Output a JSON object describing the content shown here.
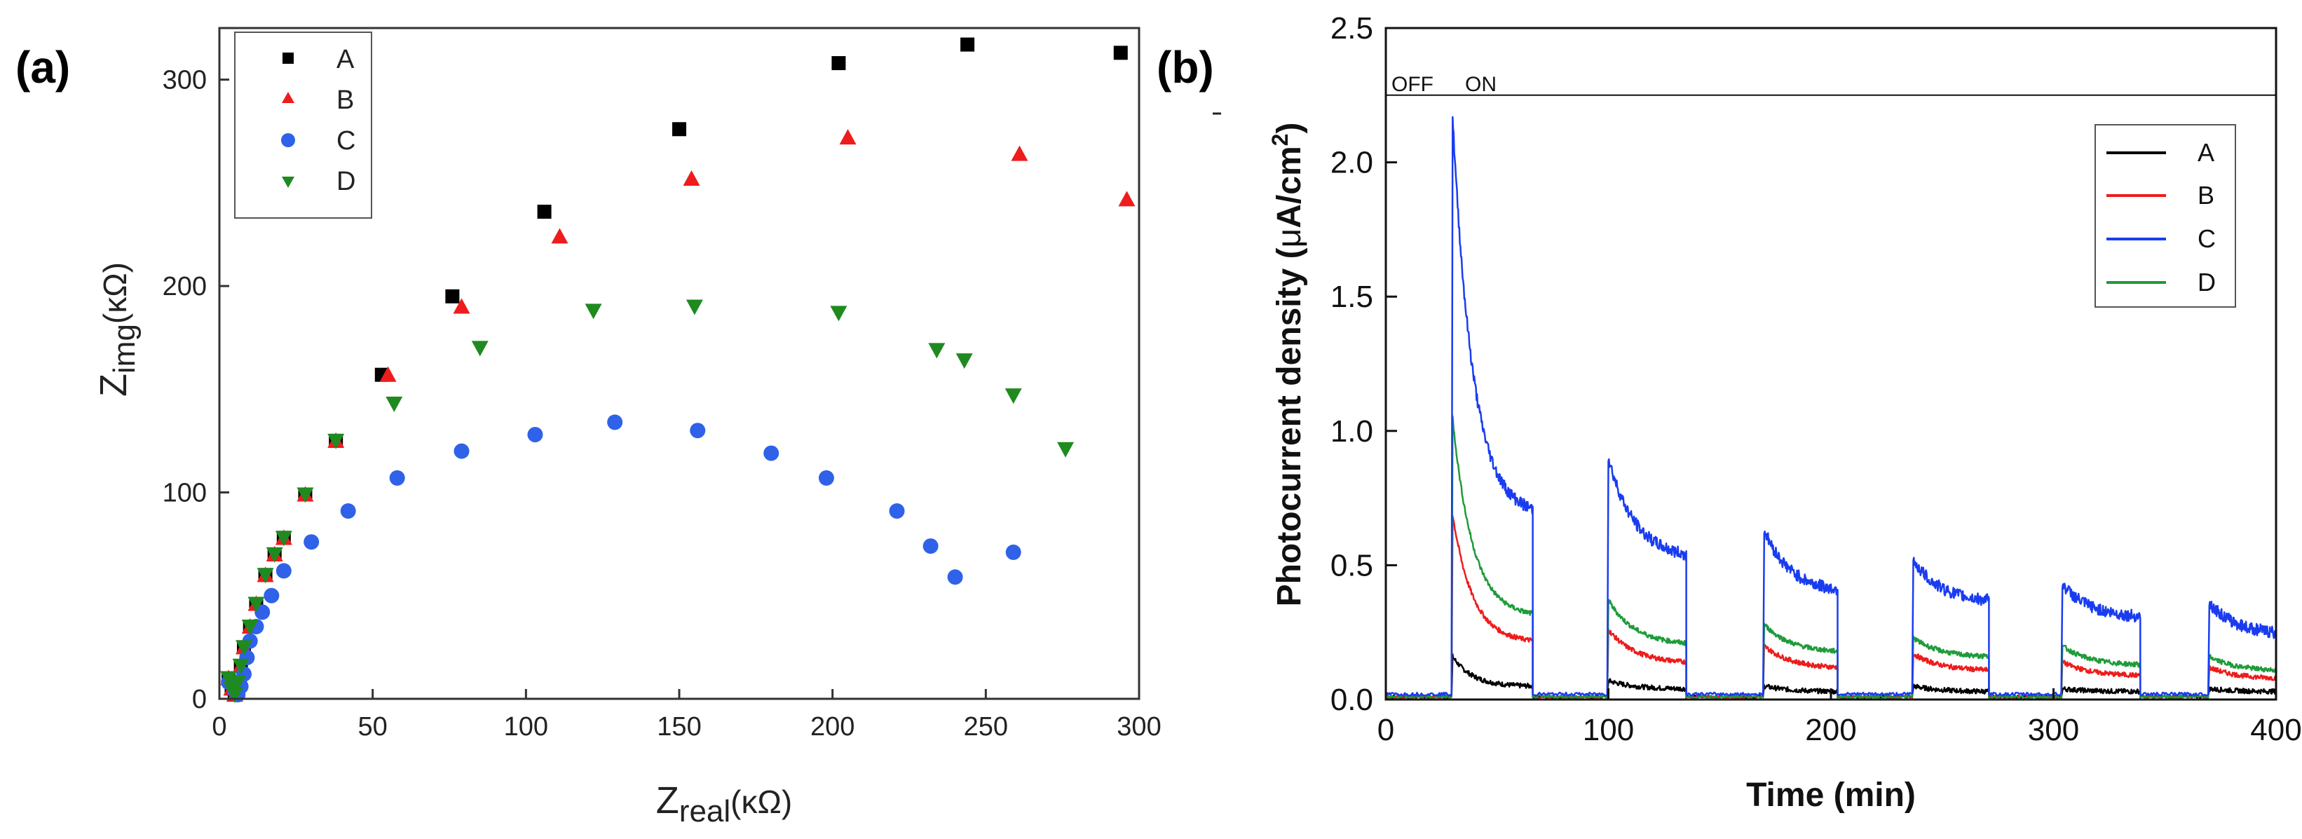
{
  "chart_data": [
    {
      "id": "a",
      "panel_label": "(a)",
      "type": "scatter",
      "title": "",
      "xlabel": {
        "main": "Z",
        "sub": "real",
        "unit": "(κΩ)"
      },
      "ylabel": {
        "main": "Z",
        "sub": "img",
        "unit": "(κΩ)"
      },
      "xlim": [
        0,
        300
      ],
      "ylim": [
        0,
        325
      ],
      "xticks": [
        0,
        50,
        100,
        150,
        200,
        250,
        300
      ],
      "yticks": [
        0,
        100,
        200,
        300
      ],
      "grid": false,
      "legend_position": "top-left",
      "series": [
        {
          "name": "A",
          "marker": "square",
          "color": "#000000",
          "x": [
            3,
            4,
            5,
            6,
            7,
            8,
            10,
            12,
            15,
            18,
            21,
            28,
            38,
            53,
            76,
            106,
            150,
            202,
            244,
            294
          ],
          "y": [
            10,
            5,
            2,
            8,
            16,
            25,
            35,
            46,
            60,
            70,
            78,
            99,
            125,
            157,
            195,
            236,
            276,
            308,
            317,
            313
          ]
        },
        {
          "name": "B",
          "marker": "triangle-up",
          "color": "#ee1c1c",
          "x": [
            3,
            4,
            5,
            6,
            7,
            8,
            10,
            12,
            15,
            18,
            21,
            28,
            38,
            55,
            79,
            111,
            154,
            205,
            261,
            296
          ],
          "y": [
            10,
            5,
            2,
            8,
            16,
            25,
            35,
            46,
            60,
            70,
            78,
            99,
            125,
            157,
            190,
            224,
            252,
            272,
            264,
            242
          ]
        },
        {
          "name": "C",
          "marker": "circle",
          "color": "#2f62e8",
          "x": [
            3,
            5,
            6,
            7,
            8,
            9,
            10,
            12,
            14,
            17,
            21,
            30,
            42,
            58,
            79,
            103,
            129,
            156,
            180,
            198,
            221,
            232,
            240,
            259
          ],
          "y": [
            8,
            4,
            2,
            6,
            12,
            20,
            28,
            35,
            42,
            50,
            62,
            76,
            91,
            107,
            120,
            128,
            134,
            130,
            119,
            107,
            91,
            74,
            59,
            71
          ]
        },
        {
          "name": "D",
          "marker": "triangle-down",
          "color": "#1f8a1f",
          "x": [
            3,
            4,
            5,
            6,
            7,
            8,
            10,
            12,
            15,
            18,
            21,
            28,
            38,
            57,
            85,
            122,
            155,
            202,
            234,
            243,
            259,
            276
          ],
          "y": [
            10,
            5,
            2,
            8,
            16,
            25,
            35,
            46,
            60,
            70,
            78,
            99,
            125,
            143,
            170,
            188,
            190,
            187,
            169,
            164,
            147,
            121
          ]
        }
      ]
    },
    {
      "id": "b",
      "panel_label": "(b)",
      "type": "line",
      "title": "",
      "xlabel": "Time (min)",
      "ylabel": {
        "main": "Photocurrent density (",
        "mu": "μ",
        "unit": "A/cm",
        "sup": "2",
        "close": ")"
      },
      "xlim": [
        0,
        400
      ],
      "ylim": [
        0,
        2.5
      ],
      "xticks": [
        0,
        100,
        200,
        300,
        400
      ],
      "yticks": [
        0.0,
        0.5,
        1.0,
        1.5,
        2.0,
        2.5
      ],
      "ytick_labels": [
        "0.0",
        "0.5",
        "1.0",
        "1.5",
        "2.0",
        "2.5"
      ],
      "grid": false,
      "legend_position": "top-right",
      "annotations": {
        "off_label": "OFF",
        "on_label": "ON",
        "state_band_top": 2.5,
        "state_band_bottom": 2.25
      },
      "light_on_intervals": [
        [
          30,
          66
        ],
        [
          100,
          135
        ],
        [
          170,
          203
        ],
        [
          237,
          271
        ],
        [
          304,
          339
        ],
        [
          370,
          400
        ]
      ],
      "series": [
        {
          "name": "A",
          "color": "#000000",
          "cycles": [
            {
              "peak": 0.16,
              "end": 0.05
            },
            {
              "peak": 0.07,
              "end": 0.04
            },
            {
              "peak": 0.05,
              "end": 0.03
            },
            {
              "peak": 0.05,
              "end": 0.03
            },
            {
              "peak": 0.04,
              "end": 0.03
            },
            {
              "peak": 0.04,
              "end": 0.03
            }
          ],
          "dark": 0.01
        },
        {
          "name": "B",
          "color": "#ee1c1c",
          "cycles": [
            {
              "peak": 0.69,
              "end": 0.22
            },
            {
              "peak": 0.26,
              "end": 0.14
            },
            {
              "peak": 0.2,
              "end": 0.12
            },
            {
              "peak": 0.17,
              "end": 0.11
            },
            {
              "peak": 0.14,
              "end": 0.09
            },
            {
              "peak": 0.12,
              "end": 0.08
            }
          ],
          "dark": 0.01
        },
        {
          "name": "C",
          "color": "#1a3cf0",
          "cycles": [
            {
              "peak": 2.17,
              "end": 0.71
            },
            {
              "peak": 0.9,
              "end": 0.54
            },
            {
              "peak": 0.63,
              "end": 0.41
            },
            {
              "peak": 0.52,
              "end": 0.37
            },
            {
              "peak": 0.43,
              "end": 0.31
            },
            {
              "peak": 0.36,
              "end": 0.25
            }
          ],
          "dark": 0.02
        },
        {
          "name": "D",
          "color": "#1f9b3a",
          "cycles": [
            {
              "peak": 1.05,
              "end": 0.32
            },
            {
              "peak": 0.37,
              "end": 0.21
            },
            {
              "peak": 0.28,
              "end": 0.18
            },
            {
              "peak": 0.23,
              "end": 0.16
            },
            {
              "peak": 0.2,
              "end": 0.13
            },
            {
              "peak": 0.16,
              "end": 0.11
            }
          ],
          "dark": 0.01
        }
      ]
    }
  ]
}
